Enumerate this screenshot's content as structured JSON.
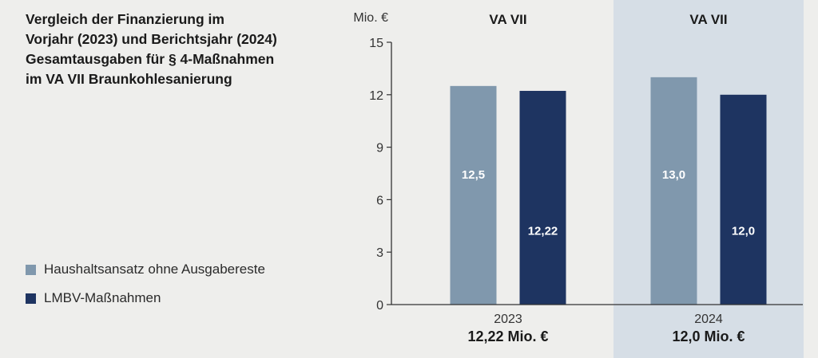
{
  "title_lines": [
    "Vergleich der Finanzierung im",
    "Vorjahr (2023) und Berichtsjahr (2024)",
    "Gesamtausgaben für § 4-Maßnahmen",
    "im VA VII Braunkohlesanierung"
  ],
  "legend": [
    {
      "label": "Haushaltsansatz ohne Ausgabereste",
      "color": "#8098ad"
    },
    {
      "label": "LMBV-Maßnahmen",
      "color": "#1e3461"
    }
  ],
  "colors": {
    "highlight_panel": "#d6dee6",
    "axis": "#333333",
    "background": "#eeeeec"
  },
  "chart_data": {
    "type": "bar",
    "ylabel": "Mio. €",
    "ylim": [
      0,
      15
    ],
    "yticks": [
      0,
      3,
      6,
      9,
      12,
      15
    ],
    "categories": [
      "2023",
      "2024"
    ],
    "group_headers": [
      "VA VII",
      "VA VII"
    ],
    "totals": [
      "12,22 Mio. €",
      "12,0 Mio. €"
    ],
    "highlighted_category": "2024",
    "series": [
      {
        "name": "Haushaltsansatz ohne Ausgabereste",
        "values": [
          12.5,
          13.0
        ],
        "labels": [
          "12,5",
          "13,0"
        ]
      },
      {
        "name": "LMBV-Maßnahmen",
        "values": [
          12.22,
          12.0
        ],
        "labels": [
          "12,22",
          "12,0"
        ]
      }
    ]
  }
}
